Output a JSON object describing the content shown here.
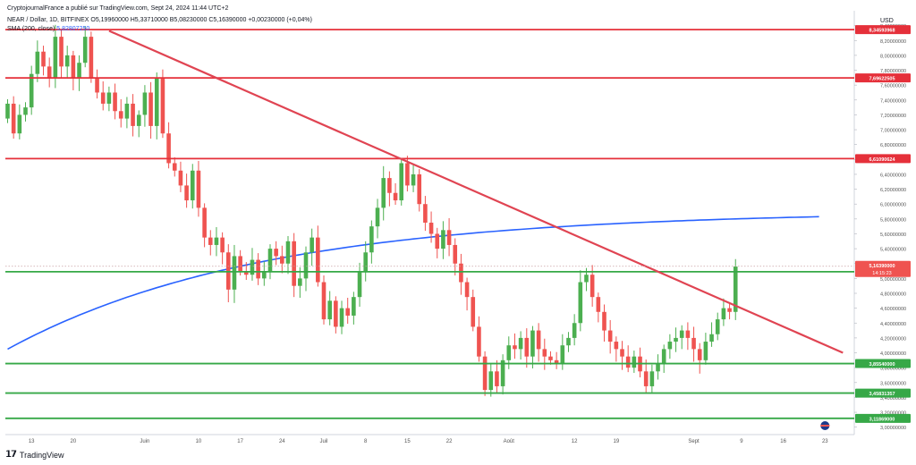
{
  "header": {
    "line1": "CryptojournalFrance a publié sur TradingView.com, Sept 24, 2024 11:44 UTC+2",
    "symbol": "NEAR / Dollar, 1D, BITFINEX",
    "ohlc": "O5,19960000  H5,33710000  B5,08230000  C5,16390000  +0,00230000 (+0,04%)",
    "sma_label": "SMA (200, close)",
    "sma_value": "5,82807250"
  },
  "brand": "TradingView",
  "currency": "USD",
  "colors": {
    "up": "#4caf50",
    "down": "#ef5350",
    "sma": "#2962ff",
    "resistance": "#e5303a",
    "support": "#36a847",
    "trendline": "#e04452"
  },
  "chart_data": {
    "type": "candlestick",
    "x_tick_labels": [
      "13",
      "20",
      "Juin",
      "10",
      "17",
      "24",
      "Juil",
      "8",
      "15",
      "22",
      "Août",
      "12",
      "19",
      "Sept",
      "9",
      "16",
      "23"
    ],
    "ylim": [
      2.9,
      8.6
    ],
    "y_tick_labels": [
      "3,00000000",
      "3,20000000",
      "3,40000000",
      "3,60000000",
      "3,80000000",
      "4,00000000",
      "4,20000000",
      "4,40000000",
      "4,60000000",
      "4,80000000",
      "5,00000000",
      "5,20000000",
      "5,40000000",
      "5,60000000",
      "5,80000000",
      "6,00000000",
      "6,20000000",
      "6,40000000",
      "6,60000000",
      "6,80000000",
      "7,00000000",
      "7,20000000",
      "7,40000000",
      "7,60000000",
      "7,80000000",
      "8,00000000",
      "8,20000000",
      "8,40000000"
    ],
    "resistance_levels": [
      {
        "value": 8.34593968,
        "label": "8,34593968"
      },
      {
        "value": 7.69622505,
        "label": "7,69622505"
      },
      {
        "value": 6.61090624,
        "label": "6,61090624"
      }
    ],
    "support_levels": [
      {
        "value": 5.08998331,
        "label": "5,08998331"
      },
      {
        "value": 3.8554,
        "label": "3,85540000"
      },
      {
        "value": 3.45831357,
        "label": "3,45831357"
      },
      {
        "value": 3.11869,
        "label": "3,11869000"
      }
    ],
    "last_price": {
      "value": 5.1639,
      "label": "5,16390000",
      "countdown": "14:15:23"
    },
    "trendline": {
      "from": {
        "date": "2024-05-26",
        "value": 8.33
      },
      "to": {
        "date": "2024-09-26",
        "value": 4.0
      }
    },
    "start_date": "2024-05-09",
    "close_start": 7.15,
    "closes": [
      7.35,
      6.95,
      7.2,
      7.3,
      7.75,
      8.05,
      7.85,
      7.7,
      8.25,
      7.85,
      8.0,
      7.7,
      7.9,
      8.25,
      7.7,
      7.5,
      7.35,
      7.5,
      7.25,
      7.15,
      7.35,
      7.05,
      7.2,
      7.5,
      7.05,
      7.7,
      6.95,
      6.55,
      6.45,
      6.25,
      6.05,
      6.45,
      5.95,
      5.55,
      5.45,
      5.55,
      5.35,
      4.85,
      5.3,
      5.1,
      5.05,
      5.25,
      5.0,
      5.1,
      5.4,
      5.3,
      5.2,
      5.5,
      4.9,
      5.0,
      5.35,
      5.55,
      4.95,
      4.45,
      4.7,
      4.35,
      4.6,
      4.5,
      4.75,
      5.1,
      5.35,
      5.7,
      5.95,
      6.35,
      6.15,
      6.05,
      6.55,
      6.25,
      6.4,
      6.0,
      5.75,
      5.6,
      5.4,
      5.65,
      5.45,
      5.2,
      4.95,
      4.75,
      4.35,
      3.95,
      3.5,
      3.75,
      3.55,
      3.9,
      4.1,
      4.05,
      4.2,
      3.95,
      4.3,
      4.05,
      3.95,
      3.9,
      3.85,
      4.1,
      4.2,
      4.4,
      4.95,
      5.05,
      4.75,
      4.55,
      4.3,
      4.15,
      4.05,
      3.95,
      3.8,
      3.95,
      3.75,
      3.55,
      3.75,
      3.85,
      4.05,
      4.15,
      4.2,
      4.3,
      4.2,
      4.05,
      3.9,
      4.15,
      4.25,
      4.45,
      4.6,
      4.55,
      5.16
    ]
  }
}
